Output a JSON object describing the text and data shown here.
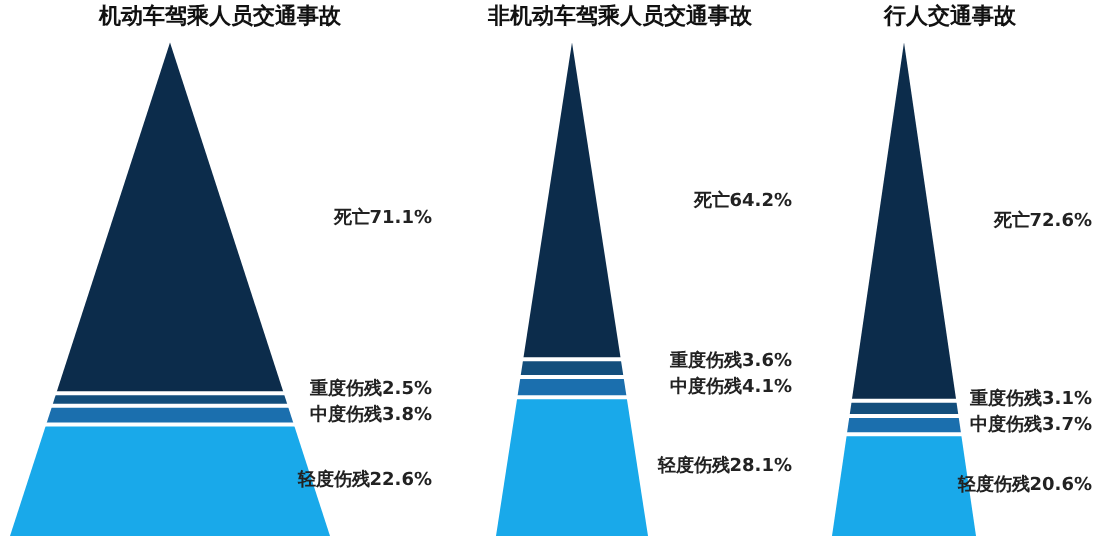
{
  "chart_data": [
    {
      "type": "other",
      "title": "机动车驾乘人员交通事故",
      "categories": [
        "死亡",
        "重度伤残",
        "中度伤残",
        "轻度伤残"
      ],
      "values": [
        71.1,
        2.5,
        3.8,
        22.6
      ],
      "value_labels": [
        "71.1%",
        "2.5%",
        "3.8%",
        "22.6%"
      ],
      "colors": [
        "#0c2c4b",
        "#134e7c",
        "#1b6fae",
        "#19a9ea"
      ]
    },
    {
      "type": "other",
      "title": "非机动车驾乘人员交通事故",
      "categories": [
        "死亡",
        "重度伤残",
        "中度伤残",
        "轻度伤残"
      ],
      "values": [
        64.2,
        3.6,
        4.1,
        28.1
      ],
      "value_labels": [
        "64.2%",
        "3.6%",
        "4.1%",
        "28.1%"
      ],
      "colors": [
        "#0c2c4b",
        "#134e7c",
        "#1b6fae",
        "#19a9ea"
      ]
    },
    {
      "type": "other",
      "title": "行人交通事故",
      "categories": [
        "死亡",
        "重度伤残",
        "中度伤残",
        "轻度伤残"
      ],
      "values": [
        72.6,
        3.1,
        3.7,
        20.6
      ],
      "value_labels": [
        "72.6%",
        "3.1%",
        "3.7%",
        "20.6%"
      ],
      "colors": [
        "#0c2c4b",
        "#134e7c",
        "#1b6fae",
        "#19a9ea"
      ]
    }
  ]
}
